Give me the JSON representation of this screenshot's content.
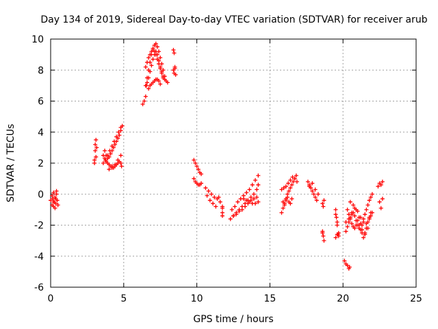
{
  "chart_data": {
    "type": "scatter",
    "title": "Day 134 of 2019, Sidereal Day-to-day VTEC variation (SDTVAR) for receiver arub",
    "xlabel": "GPS time / hours",
    "ylabel": "SDTVAR / TECUs",
    "xlim": [
      0,
      25
    ],
    "ylim": [
      -6,
      10
    ],
    "xticks": [
      0,
      5,
      10,
      15,
      20,
      25
    ],
    "yticks": [
      -6,
      -4,
      -2,
      0,
      2,
      4,
      6,
      8,
      10
    ],
    "grid": true,
    "marker": "plus",
    "color": "#ff0000",
    "series": [
      {
        "name": "SDTVAR",
        "x": [
          0.0,
          0.1,
          0.15,
          0.2,
          0.25,
          0.3,
          0.35,
          0.4,
          0.45,
          0.5,
          0.1,
          0.2,
          0.3,
          0.4,
          0.2,
          0.35,
          3.0,
          3.05,
          3.1,
          3.1,
          3.15,
          3.0,
          3.05,
          3.6,
          3.7,
          3.8,
          3.9,
          4.0,
          4.1,
          4.2,
          4.3,
          4.4,
          4.5,
          4.6,
          4.7,
          4.8,
          4.85,
          3.7,
          3.8,
          3.9,
          4.0,
          4.1,
          4.2,
          4.3,
          4.4,
          4.5,
          4.6,
          4.7,
          4.8,
          3.6,
          3.75,
          3.9,
          4.05,
          4.2,
          4.35,
          4.5,
          4.65,
          4.8,
          4.9,
          4.0,
          4.2,
          4.4,
          4.6,
          4.8,
          6.3,
          6.4,
          6.5,
          6.55,
          6.6,
          6.7,
          6.8,
          6.9,
          7.0,
          7.1,
          7.2,
          7.3,
          7.4,
          7.5,
          7.6,
          7.7,
          7.8,
          7.9,
          8.0,
          6.5,
          6.6,
          6.7,
          6.8,
          6.9,
          7.0,
          7.1,
          7.2,
          7.3,
          7.4,
          7.5,
          7.6,
          7.7,
          7.8,
          6.7,
          6.8,
          6.9,
          7.0,
          7.1,
          7.2,
          7.3,
          7.4,
          7.5,
          6.5,
          6.6,
          6.7,
          6.8,
          6.9,
          7.0,
          7.1,
          7.2,
          7.3,
          7.4,
          7.5,
          7.6,
          7.7,
          8.4,
          8.45,
          8.5,
          8.4,
          8.45,
          8.5,
          8.55,
          9.8,
          9.9,
          10.0,
          10.1,
          10.2,
          10.3,
          9.8,
          9.9,
          10.0,
          10.1,
          10.2,
          10.3,
          10.6,
          10.8,
          11.0,
          11.2,
          11.4,
          11.6,
          10.7,
          10.9,
          11.1,
          11.3,
          11.5,
          11.75,
          11.75,
          11.75,
          11.75,
          12.3,
          12.5,
          12.7,
          12.9,
          13.1,
          13.3,
          13.5,
          13.7,
          13.9,
          14.1,
          14.2,
          12.4,
          12.6,
          12.8,
          13.0,
          13.2,
          13.4,
          13.6,
          13.8,
          14.0,
          14.2,
          12.5,
          12.7,
          12.9,
          13.1,
          13.3,
          13.5,
          13.7,
          13.9,
          14.1,
          13.2,
          13.4,
          13.6,
          13.8,
          14.0,
          14.2,
          15.8,
          15.9,
          16.0,
          16.1,
          16.2,
          16.3,
          16.4,
          16.5,
          16.6,
          16.7,
          16.8,
          15.8,
          15.95,
          16.1,
          16.25,
          16.4,
          16.55,
          16.7,
          16.85,
          15.9,
          16.0,
          16.1,
          16.2,
          16.3,
          16.4,
          16.5,
          17.6,
          17.7,
          17.8,
          17.9,
          18.0,
          18.1,
          18.2,
          17.7,
          17.9,
          18.1,
          18.3,
          18.6,
          18.65,
          18.7,
          18.6,
          18.65,
          18.7,
          18.6,
          19.5,
          19.55,
          19.6,
          19.65,
          19.7,
          19.5,
          19.6,
          19.7,
          19.5,
          19.6,
          20.2,
          20.3,
          20.4,
          20.5,
          20.6,
          20.7,
          20.8,
          20.9,
          21.0,
          21.1,
          21.2,
          21.3,
          21.4,
          21.5,
          21.6,
          21.7,
          21.8,
          21.9,
          22.0,
          20.3,
          20.4,
          20.5,
          20.6,
          20.7,
          20.8,
          20.9,
          21.0,
          21.1,
          21.2,
          21.3,
          21.4,
          21.5,
          21.6,
          21.7,
          21.8,
          21.9,
          20.2,
          20.4,
          20.6,
          20.8,
          21.0,
          21.2,
          21.4,
          21.6,
          21.8,
          22.0,
          20.5,
          20.7,
          20.9,
          21.1,
          21.3,
          21.5,
          21.7,
          21.9,
          20.1,
          20.2,
          20.3,
          20.4,
          20.45,
          22.4,
          22.5,
          22.6,
          22.7,
          22.5,
          22.6,
          22.7
        ],
        "y": [
          -0.4,
          -0.7,
          -0.3,
          -0.8,
          -0.5,
          -0.2,
          -0.6,
          0.0,
          -0.4,
          -0.7,
          -0.1,
          0.1,
          -0.9,
          0.2,
          -0.5,
          -0.3,
          2.2,
          2.8,
          3.5,
          2.4,
          3.0,
          2.0,
          3.2,
          2.5,
          2.3,
          2.1,
          2.0,
          1.9,
          1.8,
          1.8,
          1.7,
          1.8,
          1.9,
          2.0,
          2.1,
          2.0,
          1.8,
          2.8,
          2.5,
          2.3,
          2.4,
          2.6,
          2.8,
          3.0,
          3.2,
          3.4,
          3.6,
          3.8,
          4.1,
          2.0,
          2.2,
          2.5,
          2.8,
          3.1,
          3.4,
          3.7,
          4.0,
          4.3,
          4.4,
          1.6,
          1.7,
          1.9,
          2.2,
          2.5,
          5.8,
          6.0,
          6.3,
          7.0,
          7.5,
          8.0,
          8.5,
          9.0,
          9.4,
          9.6,
          9.7,
          9.5,
          9.2,
          8.8,
          8.4,
          8.0,
          7.6,
          7.3,
          7.2,
          7.0,
          7.2,
          7.5,
          7.9,
          8.3,
          8.7,
          9.0,
          9.2,
          9.0,
          8.6,
          8.2,
          7.9,
          7.6,
          7.4,
          6.8,
          7.0,
          7.1,
          7.2,
          7.3,
          7.4,
          7.4,
          7.3,
          7.1,
          8.2,
          8.5,
          8.8,
          9.0,
          9.2,
          9.3,
          9.2,
          9.0,
          8.7,
          8.4,
          8.1,
          7.8,
          7.5,
          9.3,
          9.1,
          8.2,
          8.0,
          7.8,
          8.1,
          7.7,
          2.2,
          2.0,
          1.8,
          1.6,
          1.4,
          1.3,
          1.0,
          0.8,
          0.7,
          0.6,
          0.6,
          0.7,
          0.4,
          0.2,
          0.0,
          -0.2,
          -0.3,
          -0.5,
          -0.1,
          -0.4,
          -0.6,
          -0.8,
          -0.2,
          -0.8,
          -1.2,
          -1.4,
          -0.9,
          -1.6,
          -1.4,
          -1.2,
          -1.0,
          -0.8,
          -0.6,
          -0.4,
          -0.2,
          0.0,
          0.3,
          0.6,
          -1.0,
          -0.8,
          -0.5,
          -0.3,
          -0.1,
          0.1,
          0.3,
          0.6,
          0.9,
          1.2,
          -1.4,
          -1.3,
          -1.1,
          -1.0,
          -0.8,
          -0.6,
          -0.4,
          -0.3,
          -0.2,
          -0.3,
          -0.4,
          -0.5,
          -0.6,
          -0.6,
          -0.5,
          -1.2,
          -0.9,
          -0.6,
          -0.3,
          0.0,
          0.2,
          0.4,
          0.6,
          0.8,
          1.0,
          1.2,
          0.3,
          0.4,
          0.5,
          0.7,
          0.9,
          1.1,
          1.0,
          0.8,
          -0.5,
          -0.7,
          -0.4,
          -0.2,
          -0.5,
          -0.6,
          -0.3,
          0.8,
          0.6,
          0.4,
          0.2,
          0.0,
          -0.2,
          -0.4,
          0.5,
          0.7,
          0.3,
          0.0,
          -0.6,
          -0.8,
          -0.4,
          -2.5,
          -2.7,
          -3.0,
          -2.4,
          -1.3,
          -1.5,
          -1.8,
          -2.6,
          -2.7,
          -1.0,
          -2.0,
          -2.5,
          -2.8,
          -2.6,
          -2.4,
          -2.1,
          -1.8,
          -1.5,
          -1.3,
          -1.2,
          -1.4,
          -1.7,
          -2.0,
          -2.2,
          -2.3,
          -2.0,
          -1.6,
          -1.3,
          -1.0,
          -0.7,
          -0.4,
          -0.2,
          0.0,
          -1.0,
          -1.3,
          -1.6,
          -1.9,
          -2.1,
          -2.2,
          -2.0,
          -1.7,
          -1.5,
          -1.9,
          -2.5,
          -2.8,
          -2.5,
          -2.2,
          -1.8,
          -1.5,
          -1.2,
          -1.8,
          -1.6,
          -1.2,
          -0.9,
          -1.1,
          -1.5,
          -1.8,
          -1.9,
          -1.6,
          -1.2,
          -0.5,
          -0.7,
          -1.0,
          -2.0,
          -2.3,
          -2.6,
          -2.2,
          -1.4,
          -4.3,
          -4.5,
          -4.6,
          -4.8,
          -4.7,
          0.5,
          0.7,
          0.6,
          0.8,
          -0.5,
          -0.9,
          -0.3
        ]
      }
    ]
  }
}
